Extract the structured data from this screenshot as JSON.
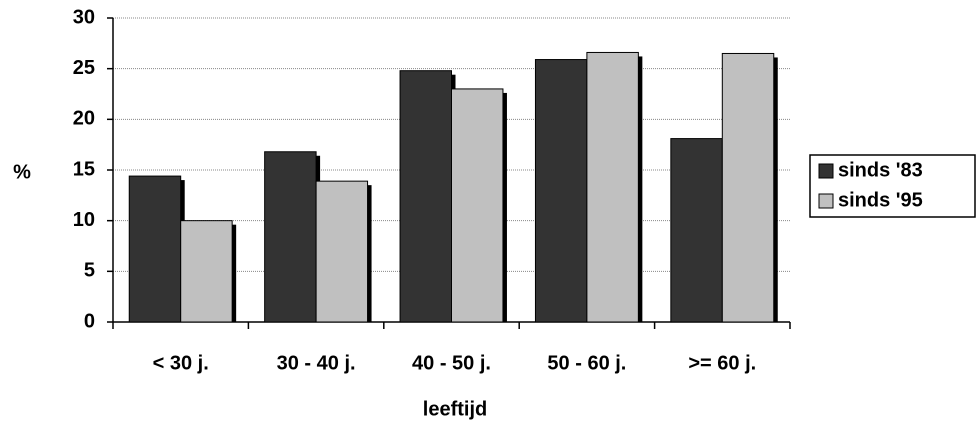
{
  "chart_data": {
    "type": "bar",
    "y_label": "%",
    "x_label": "leeftijd",
    "categories": [
      "< 30 j.",
      "30 - 40 j.",
      "40 - 50 j.",
      "50 - 60 j.",
      ">= 60 j."
    ],
    "series": [
      {
        "name": "sinds '83",
        "color": "#333333",
        "values": [
          14.4,
          16.8,
          24.8,
          25.9,
          18.1
        ]
      },
      {
        "name": "sinds '95",
        "color": "#c0c0c0",
        "values": [
          10.0,
          13.9,
          23.0,
          26.6,
          26.5
        ]
      }
    ],
    "ylim": [
      0,
      30
    ],
    "yticks": [
      0,
      5,
      10,
      15,
      20,
      25,
      30
    ],
    "grid": true,
    "legend": "right"
  }
}
